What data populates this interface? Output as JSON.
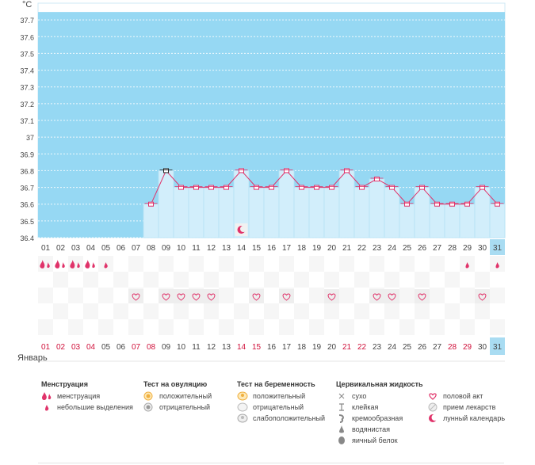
{
  "chart_data": {
    "type": "line",
    "unit_label": "°C",
    "y_ticks": [
      "37.7",
      "37.6",
      "37.5",
      "37.4",
      "37.3",
      "37.2",
      "37.1",
      "37",
      "36.9",
      "36.8",
      "36.7",
      "36.6",
      "36.5",
      "36.4"
    ],
    "ylim": [
      36.4,
      37.8
    ],
    "x": [
      "01",
      "02",
      "03",
      "04",
      "05",
      "06",
      "07",
      "08",
      "09",
      "10",
      "11",
      "12",
      "13",
      "14",
      "15",
      "16",
      "17",
      "18",
      "19",
      "20",
      "21",
      "22",
      "23",
      "24",
      "25",
      "26",
      "27",
      "28",
      "29",
      "30",
      "31"
    ],
    "series": [
      {
        "values": [
          null,
          null,
          null,
          null,
          null,
          null,
          null,
          36.6,
          36.8,
          36.7,
          36.7,
          36.7,
          36.7,
          36.8,
          36.7,
          36.7,
          36.8,
          36.7,
          36.7,
          36.7,
          36.8,
          36.7,
          36.75,
          36.7,
          36.6,
          36.7,
          36.6,
          36.6,
          36.6,
          36.7,
          36.6
        ]
      }
    ],
    "highlight_day": "31",
    "selected_day": "09",
    "menstruation": {
      "02": "heavy",
      "03": "heavy",
      "04": "heavy",
      "05": "spotting",
      "01": "heavy",
      "29": "spotting",
      "31": "spotting"
    },
    "intercourse_days": [
      "07",
      "09",
      "10",
      "11",
      "12",
      "15",
      "17",
      "20",
      "23",
      "24",
      "26",
      "30"
    ],
    "lunar_days": [
      "14"
    ],
    "bottom_day_colors": {
      "red": [
        "01",
        "02",
        "03",
        "04",
        "07",
        "08",
        "14",
        "15",
        "21",
        "22",
        "28",
        "29"
      ]
    }
  },
  "month_label": "Январь",
  "legend": {
    "menstruation": {
      "title": "Менструация",
      "items": [
        "менструация",
        "небольшие выделения"
      ]
    },
    "ovulation": {
      "title": "Тест на овуляцию",
      "items": [
        "положительный",
        "отрицательный"
      ]
    },
    "pregnancy": {
      "title": "Тест на беременность",
      "items": [
        "положительный",
        "отрицательный",
        "слабоположительный"
      ]
    },
    "cervical": {
      "title": "Цервикальная жидкость",
      "items": [
        "сухо",
        "клейкая",
        "кремообразная",
        "водянистая",
        "яичный белок"
      ]
    },
    "other": {
      "items": [
        "половой акт",
        "прием лекарств",
        "лунный календарь"
      ]
    }
  },
  "colors": {
    "background_area": "#96d8f3",
    "fill_area": "#d2eefb",
    "line": "#e0336a",
    "accent_red": "#d0103a",
    "highlight_cell": "#a9dcf2"
  }
}
